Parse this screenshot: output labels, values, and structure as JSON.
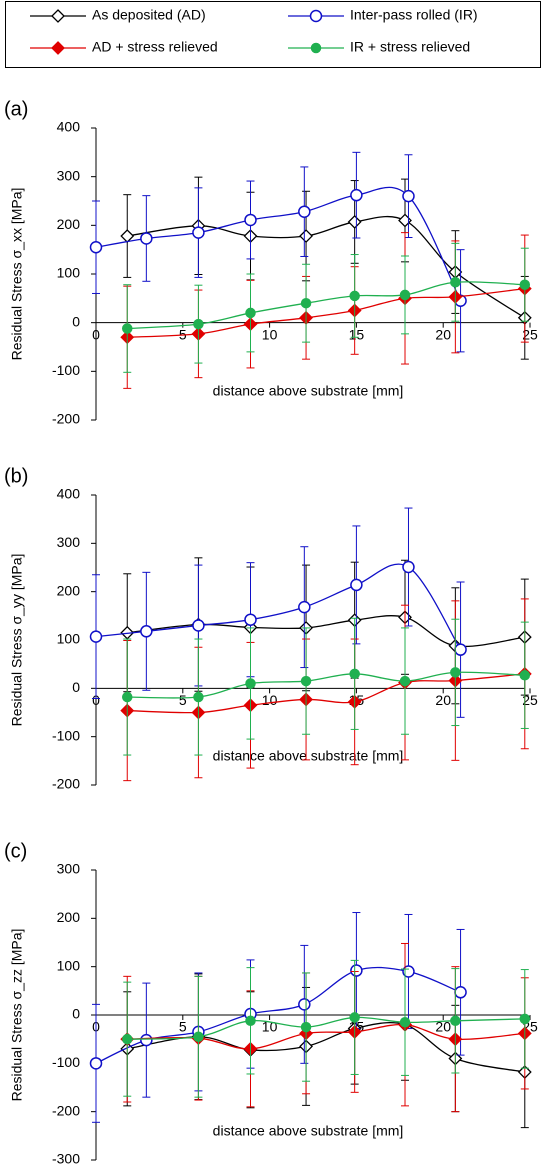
{
  "legend": {
    "entries": [
      {
        "name": "As deposited (AD)",
        "color": "#000000",
        "marker": "diamond",
        "filled": false
      },
      {
        "name": "Inter-pass rolled (IR)",
        "color": "#1010c8",
        "marker": "circle",
        "filled": false
      },
      {
        "name": "AD + stress relieved",
        "color": "#e00000",
        "marker": "diamond",
        "filled": true
      },
      {
        "name": "IR + stress relieved",
        "color": "#20b050",
        "marker": "circle",
        "filled": true
      }
    ]
  },
  "chart_data": [
    {
      "type": "line",
      "panel_label": "(a)",
      "y_label": "Residual Stress σ_xx [MPa]",
      "x_label": "distance above substrate [mm]",
      "xlim": [
        0,
        25
      ],
      "xticks": [
        0,
        5,
        10,
        15,
        20,
        25
      ],
      "ylim": [
        -200,
        400
      ],
      "yticks": [
        -200,
        -100,
        0,
        100,
        200,
        300,
        400
      ],
      "series": [
        {
          "x": [
            1.8,
            5.9,
            8.9,
            12.1,
            14.9,
            17.8,
            20.7,
            24.7
          ],
          "values": [
            178,
            199,
            178,
            178,
            207,
            210,
            104,
            10
          ],
          "errors": [
            85,
            100,
            90,
            92,
            85,
            85,
            85,
            85
          ]
        },
        {
          "x": [
            0,
            2.9,
            5.9,
            8.9,
            12,
            15,
            18,
            21
          ],
          "values": [
            155,
            173,
            185,
            211,
            228,
            262,
            260,
            45
          ],
          "errors": [
            95,
            88,
            92,
            80,
            92,
            88,
            85,
            105
          ]
        },
        {
          "x": [
            1.8,
            5.9,
            8.9,
            12.1,
            14.9,
            17.8,
            20.7,
            24.7
          ],
          "values": [
            -30,
            -23,
            -3,
            10,
            25,
            50,
            53,
            70
          ],
          "errors": [
            105,
            90,
            90,
            85,
            90,
            135,
            115,
            110
          ]
        },
        {
          "x": [
            1.8,
            5.9,
            8.9,
            12.1,
            14.9,
            17.8,
            20.7,
            24.7
          ],
          "values": [
            -12,
            -3,
            20,
            40,
            55,
            57,
            83,
            78
          ],
          "errors": [
            90,
            80,
            80,
            80,
            85,
            80,
            80,
            75
          ]
        }
      ]
    },
    {
      "type": "line",
      "panel_label": "(b)",
      "y_label": "Residual Stress σ_yy [MPa]",
      "x_label": "distance above substrate [mm]",
      "xlim": [
        0,
        25
      ],
      "xticks": [
        0,
        5,
        10,
        15,
        20,
        25
      ],
      "ylim": [
        -200,
        400
      ],
      "yticks": [
        -200,
        -100,
        0,
        100,
        200,
        300,
        400
      ],
      "series": [
        {
          "x": [
            1.8,
            5.9,
            8.9,
            12.1,
            14.9,
            17.8,
            20.7,
            24.7
          ],
          "values": [
            115,
            132,
            126,
            125,
            141,
            147,
            88,
            106
          ],
          "errors": [
            122,
            138,
            125,
            130,
            120,
            118,
            120,
            120
          ]
        },
        {
          "x": [
            0,
            2.9,
            5.9,
            8.9,
            12,
            15,
            18,
            21
          ],
          "values": [
            107,
            118,
            130,
            142,
            168,
            214,
            251,
            80
          ],
          "errors": [
            128,
            122,
            125,
            118,
            125,
            122,
            122,
            140
          ]
        },
        {
          "x": [
            1.8,
            5.9,
            8.9,
            12.1,
            14.9,
            17.8,
            20.7,
            24.7
          ],
          "values": [
            -46,
            -50,
            -35,
            -23,
            -28,
            12,
            16,
            30
          ],
          "errors": [
            145,
            135,
            130,
            125,
            130,
            160,
            165,
            155
          ]
        },
        {
          "x": [
            1.8,
            5.9,
            8.9,
            12.1,
            14.9,
            17.8,
            20.7,
            24.7
          ],
          "values": [
            -18,
            -18,
            10,
            15,
            30,
            15,
            33,
            27
          ],
          "errors": [
            120,
            120,
            115,
            110,
            115,
            110,
            110,
            110
          ]
        }
      ]
    },
    {
      "type": "line",
      "panel_label": "(c)",
      "y_label": "Residual Stress σ_zz  [MPa]",
      "x_label": "distance above substrate [mm]",
      "xlim": [
        0,
        25
      ],
      "xticks": [
        0,
        5,
        10,
        15,
        20,
        25
      ],
      "ylim": [
        -300,
        300
      ],
      "yticks": [
        -300,
        -200,
        -100,
        0,
        100,
        200,
        300
      ],
      "series": [
        {
          "x": [
            1.8,
            5.9,
            8.9,
            12.1,
            14.9,
            17.8,
            20.7,
            24.7
          ],
          "values": [
            -70,
            -45,
            -72,
            -65,
            -28,
            -20,
            -90,
            -118
          ],
          "errors": [
            118,
            130,
            120,
            122,
            115,
            115,
            110,
            115
          ]
        },
        {
          "x": [
            0,
            2.9,
            5.9,
            8.9,
            12,
            15,
            18,
            21
          ],
          "values": [
            -100,
            -52,
            -35,
            2,
            22,
            92,
            90,
            47
          ],
          "errors": [
            122,
            118,
            122,
            112,
            122,
            120,
            118,
            130
          ]
        },
        {
          "x": [
            1.8,
            5.9,
            8.9,
            12.1,
            14.9,
            17.8,
            20.7,
            24.7
          ],
          "values": [
            -50,
            -48,
            -70,
            -38,
            -35,
            -20,
            -50,
            -38
          ],
          "errors": [
            130,
            128,
            120,
            125,
            125,
            168,
            150,
            115
          ]
        },
        {
          "x": [
            1.8,
            5.9,
            8.9,
            12.1,
            14.9,
            17.8,
            20.7,
            24.7
          ],
          "values": [
            -50,
            -45,
            -12,
            -25,
            -5,
            -15,
            -12,
            -8
          ],
          "errors": [
            118,
            125,
            110,
            112,
            118,
            110,
            108,
            102
          ]
        }
      ]
    }
  ]
}
